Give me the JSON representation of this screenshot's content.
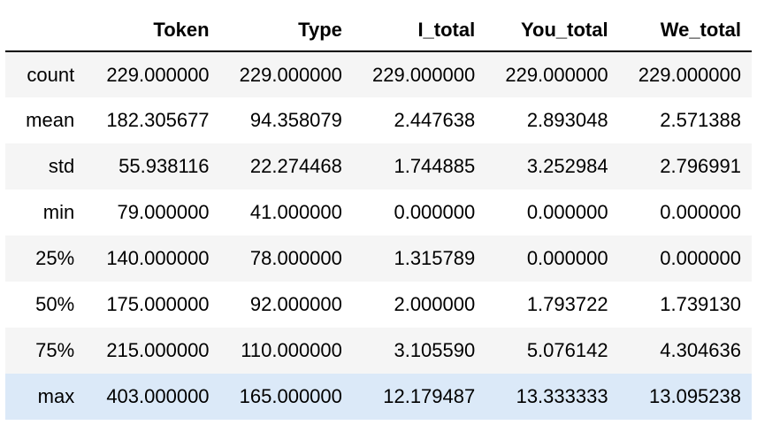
{
  "table": {
    "columns": [
      "",
      "Token",
      "Type",
      "I_total",
      "You_total",
      "We_total"
    ],
    "rows": [
      {
        "index": "count",
        "values": [
          "229.000000",
          "229.000000",
          "229.000000",
          "229.000000",
          "229.000000"
        ]
      },
      {
        "index": "mean",
        "values": [
          "182.305677",
          "94.358079",
          "2.447638",
          "2.893048",
          "2.571388"
        ]
      },
      {
        "index": "std",
        "values": [
          "55.938116",
          "22.274468",
          "1.744885",
          "3.252984",
          "2.796991"
        ]
      },
      {
        "index": "min",
        "values": [
          "79.000000",
          "41.000000",
          "0.000000",
          "0.000000",
          "0.000000"
        ]
      },
      {
        "index": "25%",
        "values": [
          "140.000000",
          "78.000000",
          "1.315789",
          "0.000000",
          "0.000000"
        ]
      },
      {
        "index": "50%",
        "values": [
          "175.000000",
          "92.000000",
          "2.000000",
          "1.793722",
          "1.739130"
        ]
      },
      {
        "index": "75%",
        "values": [
          "215.000000",
          "110.000000",
          "3.105590",
          "5.076142",
          "4.304636"
        ]
      },
      {
        "index": "max",
        "values": [
          "403.000000",
          "165.000000",
          "12.179487",
          "13.333333",
          "13.095238"
        ]
      }
    ],
    "highlighted_row": "max"
  },
  "colors": {
    "stripe": "#f5f5f5",
    "highlight": "#dbe9f8",
    "header_border": "#000000"
  }
}
